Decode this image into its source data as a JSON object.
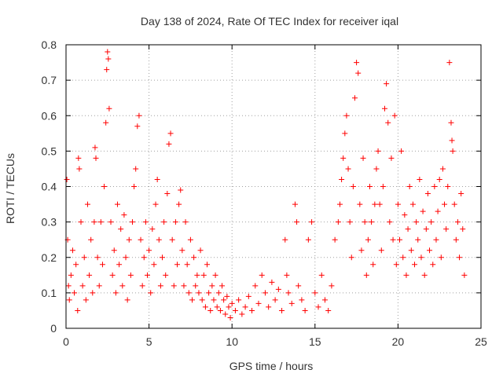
{
  "chart_data": {
    "type": "scatter",
    "title": "Day 138 of 2024, Rate Of TEC Index for receiver iqal",
    "xlabel": "GPS time / hours",
    "ylabel": "ROTI / TECUs",
    "xlim": [
      0,
      25
    ],
    "ylim": [
      0,
      0.8
    ],
    "xticks": [
      0,
      5,
      10,
      15,
      20,
      25
    ],
    "xtick_labels": [
      "0",
      "5",
      "10",
      "15",
      "20",
      "25"
    ],
    "yticks": [
      0,
      0.1,
      0.2,
      0.3,
      0.4,
      0.5,
      0.6,
      0.7,
      0.8
    ],
    "ytick_labels": [
      "0",
      "0.1",
      "0.2",
      "0.3",
      "0.4",
      "0.5",
      "0.6",
      "0.7",
      "0.8"
    ],
    "grid": true,
    "marker": "+",
    "marker_color": "#ff0000",
    "series": [
      {
        "name": "ROTI",
        "points": [
          [
            0.05,
            0.42
          ],
          [
            0.1,
            0.25
          ],
          [
            0.15,
            0.12
          ],
          [
            0.2,
            0.08
          ],
          [
            0.3,
            0.15
          ],
          [
            0.4,
            0.22
          ],
          [
            0.5,
            0.1
          ],
          [
            0.6,
            0.18
          ],
          [
            0.7,
            0.05
          ],
          [
            0.75,
            0.48
          ],
          [
            0.8,
            0.45
          ],
          [
            0.9,
            0.3
          ],
          [
            1.0,
            0.12
          ],
          [
            1.1,
            0.2
          ],
          [
            1.2,
            0.08
          ],
          [
            1.3,
            0.35
          ],
          [
            1.4,
            0.15
          ],
          [
            1.5,
            0.25
          ],
          [
            1.6,
            0.1
          ],
          [
            1.7,
            0.3
          ],
          [
            1.75,
            0.51
          ],
          [
            1.8,
            0.48
          ],
          [
            1.9,
            0.2
          ],
          [
            2.0,
            0.12
          ],
          [
            2.1,
            0.3
          ],
          [
            2.2,
            0.18
          ],
          [
            2.3,
            0.4
          ],
          [
            2.4,
            0.58
          ],
          [
            2.45,
            0.73
          ],
          [
            2.5,
            0.78
          ],
          [
            2.55,
            0.76
          ],
          [
            2.6,
            0.62
          ],
          [
            2.7,
            0.3
          ],
          [
            2.8,
            0.15
          ],
          [
            2.9,
            0.22
          ],
          [
            3.0,
            0.1
          ],
          [
            3.1,
            0.35
          ],
          [
            3.2,
            0.18
          ],
          [
            3.3,
            0.28
          ],
          [
            3.4,
            0.12
          ],
          [
            3.5,
            0.32
          ],
          [
            3.6,
            0.2
          ],
          [
            3.7,
            0.08
          ],
          [
            3.8,
            0.25
          ],
          [
            3.9,
            0.15
          ],
          [
            4.0,
            0.3
          ],
          [
            4.1,
            0.4
          ],
          [
            4.2,
            0.45
          ],
          [
            4.3,
            0.57
          ],
          [
            4.4,
            0.6
          ],
          [
            4.5,
            0.25
          ],
          [
            4.6,
            0.12
          ],
          [
            4.7,
            0.2
          ],
          [
            4.8,
            0.3
          ],
          [
            4.9,
            0.15
          ],
          [
            5.0,
            0.22
          ],
          [
            5.1,
            0.1
          ],
          [
            5.2,
            0.28
          ],
          [
            5.3,
            0.18
          ],
          [
            5.4,
            0.35
          ],
          [
            5.5,
            0.42
          ],
          [
            5.6,
            0.25
          ],
          [
            5.7,
            0.12
          ],
          [
            5.8,
            0.2
          ],
          [
            5.9,
            0.3
          ],
          [
            6.0,
            0.15
          ],
          [
            6.1,
            0.38
          ],
          [
            6.2,
            0.52
          ],
          [
            6.3,
            0.55
          ],
          [
            6.4,
            0.25
          ],
          [
            6.5,
            0.12
          ],
          [
            6.6,
            0.3
          ],
          [
            6.7,
            0.18
          ],
          [
            6.8,
            0.35
          ],
          [
            6.9,
            0.39
          ],
          [
            7.0,
            0.22
          ],
          [
            7.1,
            0.12
          ],
          [
            7.2,
            0.3
          ],
          [
            7.3,
            0.18
          ],
          [
            7.4,
            0.1
          ],
          [
            7.5,
            0.25
          ],
          [
            7.6,
            0.08
          ],
          [
            7.7,
            0.2
          ],
          [
            7.8,
            0.12
          ],
          [
            7.9,
            0.15
          ],
          [
            8.0,
            0.1
          ],
          [
            8.1,
            0.22
          ],
          [
            8.2,
            0.08
          ],
          [
            8.3,
            0.15
          ],
          [
            8.4,
            0.06
          ],
          [
            8.5,
            0.18
          ],
          [
            8.6,
            0.1
          ],
          [
            8.7,
            0.05
          ],
          [
            8.8,
            0.12
          ],
          [
            8.9,
            0.08
          ],
          [
            9.0,
            0.15
          ],
          [
            9.1,
            0.06
          ],
          [
            9.2,
            0.1
          ],
          [
            9.3,
            0.05
          ],
          [
            9.4,
            0.12
          ],
          [
            9.5,
            0.08
          ],
          [
            9.6,
            0.04
          ],
          [
            9.7,
            0.09
          ],
          [
            9.8,
            0.06
          ],
          [
            9.9,
            0.03
          ],
          [
            10.0,
            0.07
          ],
          [
            10.2,
            0.05
          ],
          [
            10.4,
            0.08
          ],
          [
            10.6,
            0.04
          ],
          [
            10.8,
            0.06
          ],
          [
            11.0,
            0.09
          ],
          [
            11.2,
            0.05
          ],
          [
            11.4,
            0.12
          ],
          [
            11.6,
            0.07
          ],
          [
            11.8,
            0.15
          ],
          [
            12.0,
            0.1
          ],
          [
            12.2,
            0.06
          ],
          [
            12.4,
            0.13
          ],
          [
            12.6,
            0.08
          ],
          [
            12.8,
            0.11
          ],
          [
            13.0,
            0.05
          ],
          [
            13.2,
            0.25
          ],
          [
            13.3,
            0.15
          ],
          [
            13.4,
            0.1
          ],
          [
            13.6,
            0.07
          ],
          [
            13.8,
            0.35
          ],
          [
            13.9,
            0.3
          ],
          [
            14.0,
            0.12
          ],
          [
            14.2,
            0.08
          ],
          [
            14.4,
            0.05
          ],
          [
            14.6,
            0.25
          ],
          [
            14.8,
            0.3
          ],
          [
            15.0,
            0.1
          ],
          [
            15.2,
            0.06
          ],
          [
            15.4,
            0.15
          ],
          [
            15.6,
            0.08
          ],
          [
            15.8,
            0.05
          ],
          [
            16.0,
            0.12
          ],
          [
            16.2,
            0.25
          ],
          [
            16.4,
            0.3
          ],
          [
            16.5,
            0.35
          ],
          [
            16.6,
            0.42
          ],
          [
            16.7,
            0.48
          ],
          [
            16.8,
            0.55
          ],
          [
            16.9,
            0.6
          ],
          [
            17.0,
            0.45
          ],
          [
            17.1,
            0.3
          ],
          [
            17.2,
            0.2
          ],
          [
            17.3,
            0.4
          ],
          [
            17.4,
            0.65
          ],
          [
            17.5,
            0.75
          ],
          [
            17.6,
            0.72
          ],
          [
            17.7,
            0.35
          ],
          [
            17.8,
            0.22
          ],
          [
            17.9,
            0.48
          ],
          [
            18.0,
            0.3
          ],
          [
            18.1,
            0.15
          ],
          [
            18.2,
            0.25
          ],
          [
            18.3,
            0.4
          ],
          [
            18.4,
            0.3
          ],
          [
            18.5,
            0.18
          ],
          [
            18.6,
            0.35
          ],
          [
            18.7,
            0.45
          ],
          [
            18.8,
            0.5
          ],
          [
            18.9,
            0.35
          ],
          [
            19.0,
            0.22
          ],
          [
            19.1,
            0.4
          ],
          [
            19.2,
            0.62
          ],
          [
            19.3,
            0.69
          ],
          [
            19.4,
            0.58
          ],
          [
            19.5,
            0.3
          ],
          [
            19.6,
            0.48
          ],
          [
            19.7,
            0.25
          ],
          [
            19.8,
            0.6
          ],
          [
            19.9,
            0.18
          ],
          [
            20.0,
            0.35
          ],
          [
            20.1,
            0.25
          ],
          [
            20.2,
            0.5
          ],
          [
            20.3,
            0.2
          ],
          [
            20.4,
            0.32
          ],
          [
            20.5,
            0.15
          ],
          [
            20.6,
            0.28
          ],
          [
            20.7,
            0.4
          ],
          [
            20.8,
            0.22
          ],
          [
            20.9,
            0.35
          ],
          [
            21.0,
            0.18
          ],
          [
            21.1,
            0.3
          ],
          [
            21.2,
            0.25
          ],
          [
            21.3,
            0.42
          ],
          [
            21.4,
            0.2
          ],
          [
            21.5,
            0.33
          ],
          [
            21.6,
            0.15
          ],
          [
            21.7,
            0.28
          ],
          [
            21.8,
            0.38
          ],
          [
            21.9,
            0.22
          ],
          [
            22.0,
            0.3
          ],
          [
            22.1,
            0.18
          ],
          [
            22.2,
            0.4
          ],
          [
            22.3,
            0.25
          ],
          [
            22.4,
            0.33
          ],
          [
            22.5,
            0.42
          ],
          [
            22.6,
            0.2
          ],
          [
            22.7,
            0.45
          ],
          [
            22.8,
            0.35
          ],
          [
            22.9,
            0.28
          ],
          [
            23.0,
            0.4
          ],
          [
            23.1,
            0.75
          ],
          [
            23.2,
            0.58
          ],
          [
            23.25,
            0.53
          ],
          [
            23.3,
            0.5
          ],
          [
            23.4,
            0.35
          ],
          [
            23.5,
            0.25
          ],
          [
            23.6,
            0.3
          ],
          [
            23.7,
            0.2
          ],
          [
            23.8,
            0.38
          ],
          [
            23.9,
            0.28
          ],
          [
            24.0,
            0.15
          ]
        ]
      }
    ]
  }
}
